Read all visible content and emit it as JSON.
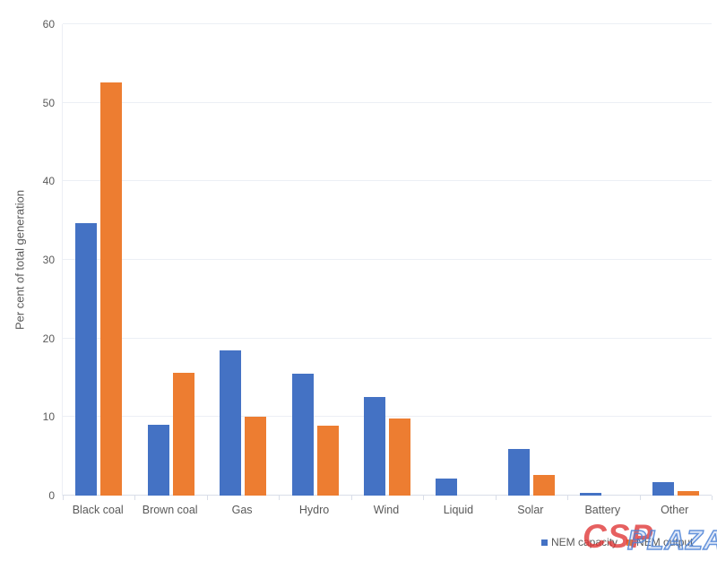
{
  "chart_data": {
    "type": "bar",
    "title": "",
    "xlabel": "",
    "ylabel": "Per cent of total generation",
    "ylim": [
      0,
      60
    ],
    "yticks": [
      0,
      10,
      20,
      30,
      40,
      50,
      60
    ],
    "grid": true,
    "legend_position": "bottom-right",
    "categories": [
      "Black coal",
      "Brown coal",
      "Gas",
      "Hydro",
      "Wind",
      "Liquid",
      "Solar",
      "Battery",
      "Other"
    ],
    "series": [
      {
        "name": "NEM capacity",
        "color": "#4472C4",
        "values": [
          34.7,
          9.0,
          18.5,
          15.5,
          12.5,
          2.2,
          5.9,
          0.4,
          1.7
        ]
      },
      {
        "name": "NEM output",
        "color": "#ED7D31",
        "values": [
          52.6,
          15.6,
          10.0,
          8.9,
          9.8,
          0,
          2.6,
          0,
          0.6
        ]
      }
    ]
  },
  "watermark": {
    "text_left": "CSP",
    "text_right": "PLAZA",
    "color_left": "#DF3333",
    "color_right": "#4D82D6"
  },
  "style": {
    "axis_text_color": "#595959",
    "gridline_color": "#ECEFF5",
    "axis_line_color": "#D9DEE8",
    "background": "#FFFFFF"
  }
}
